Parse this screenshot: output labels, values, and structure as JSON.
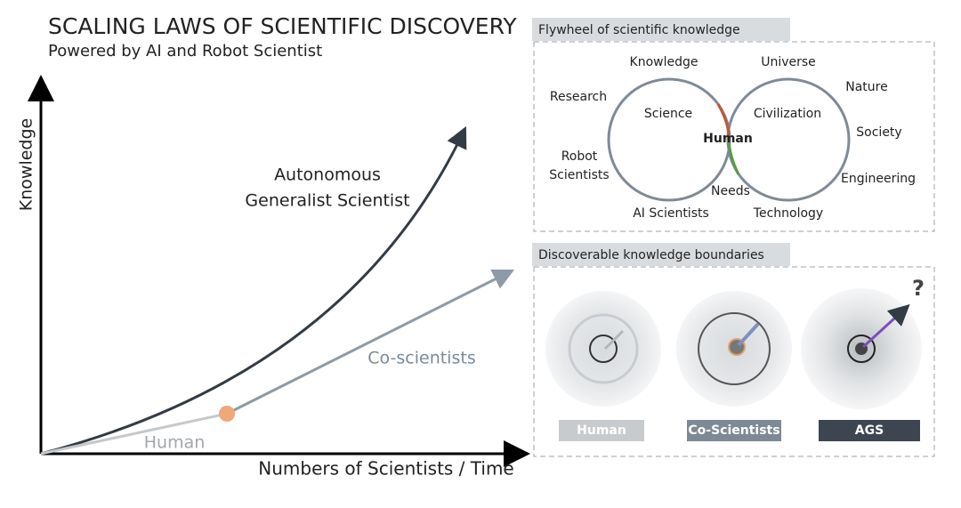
{
  "header": {
    "title": "SCALING LAWS OF SCIENTIFIC DISCOVERY",
    "subtitle": "Powered by AI and Robot Scientist"
  },
  "plot": {
    "y_axis": "Knowledge",
    "x_axis": "Numbers of Scientists / Time",
    "curves": [
      {
        "label_lines": [
          "Autonomous",
          "Generalist Scientist"
        ]
      },
      {
        "label_lines": [
          "Co-scientists"
        ]
      },
      {
        "label_lines": [
          "Human"
        ]
      }
    ]
  },
  "flywheel": {
    "title": "Flywheel of scientific knowledge",
    "center": "Human",
    "left_inner": "Science",
    "right_inner": "Civilization",
    "labels": [
      "Knowledge",
      "Research",
      "Robot",
      "Scientists",
      "AI Scientists",
      "Needs",
      "Universe",
      "Nature",
      "Society",
      "Engineering",
      "Technology"
    ]
  },
  "boundaries": {
    "title": "Discoverable knowledge boundaries",
    "question": "?",
    "items": [
      "Human",
      "Co-Scientists",
      "AGS"
    ]
  }
}
